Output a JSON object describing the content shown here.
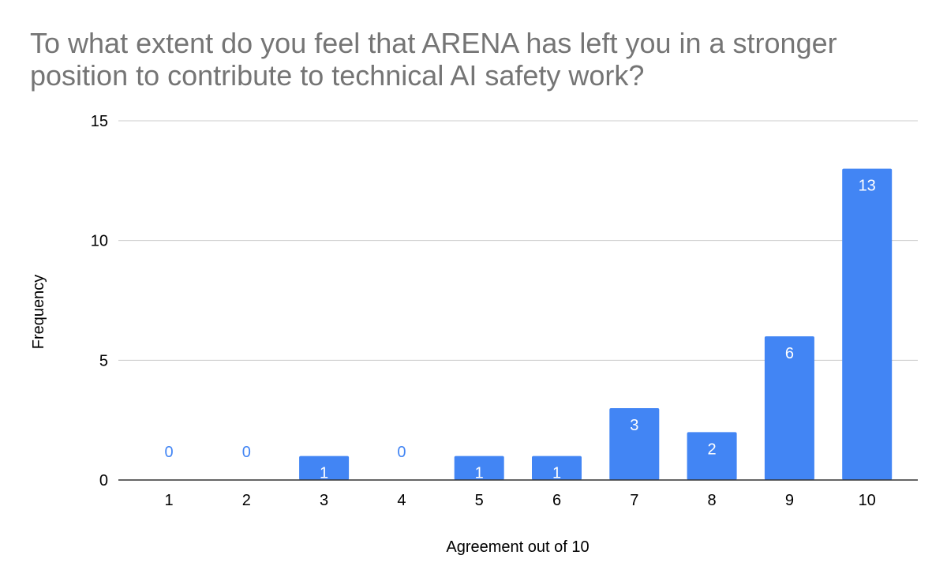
{
  "chart_data": {
    "type": "bar",
    "title": "To what extent do you feel that ARENA has left you in a stronger position to contribute to technical AI safety work?",
    "xlabel": "Agreement out of 10",
    "ylabel": "Frequency",
    "categories": [
      "1",
      "2",
      "3",
      "4",
      "5",
      "6",
      "7",
      "8",
      "9",
      "10"
    ],
    "values": [
      0,
      0,
      1,
      0,
      1,
      1,
      3,
      2,
      6,
      13
    ],
    "data_labels": [
      "0",
      "0",
      "1",
      "0",
      "1",
      "1",
      "3",
      "2",
      "6",
      "13"
    ],
    "ylim": [
      0,
      15
    ],
    "yticks": [
      0,
      5,
      10,
      15
    ],
    "ytick_labels": [
      "0",
      "5",
      "10",
      "15"
    ],
    "grid": true,
    "legend": "none",
    "bar_color": "#4285f4",
    "zero_label_color": "#4285f4",
    "inner_label_color": "#ffffff",
    "title_color": "#757575",
    "gridline_color": "#cccccc"
  }
}
